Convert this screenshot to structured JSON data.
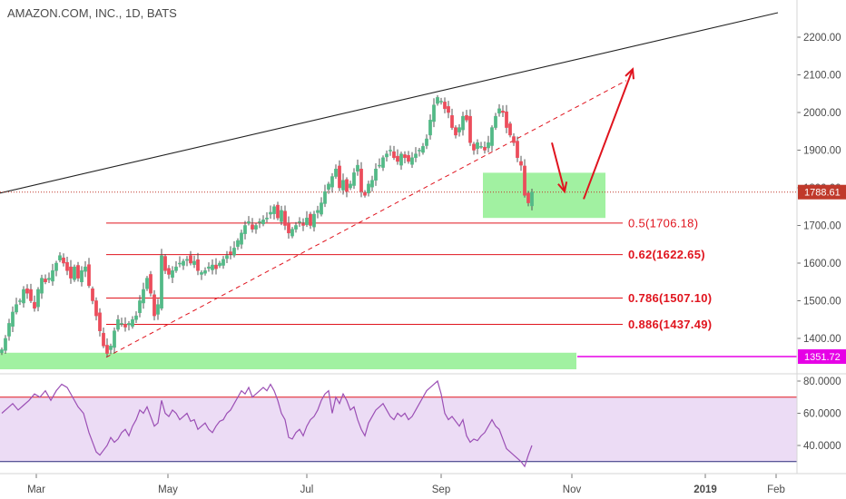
{
  "colors": {
    "up_candle": "#53b987",
    "down_candle": "#eb4d5c",
    "wick": "#555555",
    "resistance_line": "#222222",
    "support_dashed": "#e0141e",
    "fib_line": "#e0141e",
    "green_zone": "#90ee90",
    "current_price_line": "#c0392b",
    "support_price_line": "#e600e6",
    "rsi_line": "#9b4fb5",
    "rsi_band": "#ecdcf5",
    "rsi_upper": "#e0141e",
    "rsi_lower": "#2a2a7a",
    "arrow": "#e0141e"
  },
  "chart_data": [
    {
      "type": "candlestick",
      "title": "AMAZON.COM, INC., 1D, BATS",
      "ylim": [
        1320,
        2290
      ],
      "y_ticks": [
        "1400.00",
        "1500.00",
        "1600.00",
        "1700.00",
        "1800.00",
        "1900.00",
        "2000.00",
        "2100.00",
        "2200.00"
      ],
      "x_ticks": [
        {
          "label": "Mar",
          "bold": false
        },
        {
          "label": "May",
          "bold": false
        },
        {
          "label": "Jul",
          "bold": false
        },
        {
          "label": "Sep",
          "bold": false
        },
        {
          "label": "Nov",
          "bold": false
        },
        {
          "label": "2019",
          "bold": true
        },
        {
          "label": "Feb",
          "bold": false
        }
      ],
      "close_path": [
        [
          0,
          1370
        ],
        [
          4,
          1400
        ],
        [
          8,
          1440
        ],
        [
          12,
          1470
        ],
        [
          16,
          1490
        ],
        [
          20,
          1500
        ],
        [
          24,
          1530
        ],
        [
          28,
          1520
        ],
        [
          32,
          1500
        ],
        [
          36,
          1480
        ],
        [
          40,
          1530
        ],
        [
          44,
          1560
        ],
        [
          48,
          1550
        ],
        [
          52,
          1560
        ],
        [
          56,
          1580
        ],
        [
          60,
          1600
        ],
        [
          64,
          1620
        ],
        [
          68,
          1600
        ],
        [
          72,
          1580
        ],
        [
          76,
          1560
        ],
        [
          80,
          1590
        ],
        [
          84,
          1560
        ],
        [
          88,
          1580
        ],
        [
          92,
          1590
        ],
        [
          96,
          1540
        ],
        [
          100,
          1500
        ],
        [
          104,
          1460
        ],
        [
          108,
          1420
        ],
        [
          112,
          1380
        ],
        [
          116,
          1360
        ],
        [
          120,
          1380
        ],
        [
          124,
          1420
        ],
        [
          128,
          1450
        ],
        [
          132,
          1440
        ],
        [
          136,
          1430
        ],
        [
          140,
          1440
        ],
        [
          144,
          1450
        ],
        [
          148,
          1460
        ],
        [
          152,
          1500
        ],
        [
          156,
          1530
        ],
        [
          160,
          1560
        ],
        [
          164,
          1520
        ],
        [
          168,
          1460
        ],
        [
          172,
          1490
        ],
        [
          176,
          1620
        ],
        [
          180,
          1580
        ],
        [
          184,
          1570
        ],
        [
          188,
          1580
        ],
        [
          192,
          1590
        ],
        [
          196,
          1600
        ],
        [
          200,
          1605
        ],
        [
          204,
          1610
        ],
        [
          208,
          1600
        ],
        [
          212,
          1605
        ],
        [
          216,
          1580
        ],
        [
          220,
          1575
        ],
        [
          224,
          1580
        ],
        [
          228,
          1590
        ],
        [
          232,
          1595
        ],
        [
          236,
          1585
        ],
        [
          240,
          1600
        ],
        [
          244,
          1610
        ],
        [
          248,
          1620
        ],
        [
          252,
          1625
        ],
        [
          256,
          1640
        ],
        [
          260,
          1660
        ],
        [
          264,
          1680
        ],
        [
          268,
          1700
        ],
        [
          272,
          1710
        ],
        [
          276,
          1690
        ],
        [
          280,
          1700
        ],
        [
          284,
          1710
        ],
        [
          288,
          1715
        ],
        [
          292,
          1720
        ],
        [
          296,
          1735
        ],
        [
          300,
          1750
        ],
        [
          304,
          1720
        ],
        [
          308,
          1740
        ],
        [
          312,
          1700
        ],
        [
          316,
          1680
        ],
        [
          320,
          1690
        ],
        [
          324,
          1700
        ],
        [
          328,
          1710
        ],
        [
          332,
          1700
        ],
        [
          336,
          1720
        ],
        [
          340,
          1700
        ],
        [
          344,
          1730
        ],
        [
          348,
          1740
        ],
        [
          352,
          1760
        ],
        [
          356,
          1790
        ],
        [
          360,
          1810
        ],
        [
          364,
          1830
        ],
        [
          368,
          1850
        ],
        [
          372,
          1800
        ],
        [
          376,
          1820
        ],
        [
          380,
          1790
        ],
        [
          384,
          1810
        ],
        [
          388,
          1840
        ],
        [
          392,
          1860
        ],
        [
          396,
          1790
        ],
        [
          400,
          1780
        ],
        [
          404,
          1810
        ],
        [
          408,
          1820
        ],
        [
          412,
          1850
        ],
        [
          416,
          1860
        ],
        [
          420,
          1880
        ],
        [
          424,
          1890
        ],
        [
          428,
          1900
        ],
        [
          432,
          1880
        ],
        [
          436,
          1870
        ],
        [
          440,
          1890
        ],
        [
          444,
          1880
        ],
        [
          448,
          1870
        ],
        [
          452,
          1880
        ],
        [
          456,
          1890
        ],
        [
          460,
          1900
        ],
        [
          464,
          1910
        ],
        [
          468,
          1930
        ],
        [
          472,
          1980
        ],
        [
          476,
          2020
        ],
        [
          480,
          2040
        ],
        [
          484,
          2030
        ],
        [
          488,
          2010
        ],
        [
          492,
          2000
        ],
        [
          496,
          1960
        ],
        [
          500,
          1940
        ],
        [
          504,
          1960
        ],
        [
          508,
          1990
        ],
        [
          512,
          1980
        ],
        [
          516,
          1920
        ],
        [
          520,
          1900
        ],
        [
          524,
          1920
        ],
        [
          528,
          1910
        ],
        [
          532,
          1900
        ],
        [
          536,
          1920
        ],
        [
          540,
          1960
        ],
        [
          544,
          1990
        ],
        [
          548,
          2010
        ],
        [
          552,
          2000
        ],
        [
          556,
          1960
        ],
        [
          560,
          1940
        ],
        [
          564,
          1920
        ],
        [
          568,
          1880
        ],
        [
          572,
          1860
        ],
        [
          576,
          1780
        ],
        [
          580,
          1760
        ],
        [
          584,
          1788.61
        ]
      ],
      "fib_levels": [
        {
          "label": "0.5(1706.18)",
          "value": 1706.18,
          "bold": false
        },
        {
          "label": "0.62(1622.65)",
          "value": 1622.65,
          "bold": true
        },
        {
          "label": "0.786(1507.10)",
          "value": 1507.1,
          "bold": true
        },
        {
          "label": "0.886(1437.49)",
          "value": 1437.49,
          "bold": true
        }
      ],
      "current_price": {
        "label": "1788.61",
        "value": 1788.61
      },
      "support_price": {
        "label": "1351.72",
        "value": 1351.72
      },
      "resistance_line": {
        "from": 1786,
        "to": 2265
      },
      "dashed_support_line": {
        "from": 1350,
        "to": 2085
      }
    },
    {
      "type": "line",
      "title": "",
      "ylim": [
        22,
        88
      ],
      "y_ticks": [
        "40.0000",
        "60.0000",
        "80.0000"
      ],
      "upper_band": 70,
      "lower_band": 30,
      "rsi_path": [
        [
          0,
          60
        ],
        [
          6,
          63
        ],
        [
          12,
          66
        ],
        [
          18,
          62
        ],
        [
          24,
          65
        ],
        [
          30,
          68
        ],
        [
          36,
          72
        ],
        [
          42,
          70
        ],
        [
          48,
          74
        ],
        [
          54,
          68
        ],
        [
          60,
          74
        ],
        [
          66,
          78
        ],
        [
          72,
          76
        ],
        [
          78,
          70
        ],
        [
          84,
          64
        ],
        [
          90,
          60
        ],
        [
          96,
          48
        ],
        [
          100,
          42
        ],
        [
          104,
          36
        ],
        [
          108,
          34
        ],
        [
          112,
          37
        ],
        [
          116,
          40
        ],
        [
          120,
          45
        ],
        [
          124,
          42
        ],
        [
          128,
          44
        ],
        [
          132,
          48
        ],
        [
          136,
          50
        ],
        [
          140,
          46
        ],
        [
          144,
          52
        ],
        [
          148,
          56
        ],
        [
          152,
          62
        ],
        [
          156,
          60
        ],
        [
          160,
          64
        ],
        [
          164,
          58
        ],
        [
          168,
          52
        ],
        [
          172,
          54
        ],
        [
          176,
          68
        ],
        [
          180,
          60
        ],
        [
          184,
          58
        ],
        [
          188,
          62
        ],
        [
          192,
          60
        ],
        [
          196,
          56
        ],
        [
          200,
          58
        ],
        [
          204,
          60
        ],
        [
          208,
          55
        ],
        [
          212,
          56
        ],
        [
          216,
          50
        ],
        [
          220,
          52
        ],
        [
          224,
          54
        ],
        [
          228,
          50
        ],
        [
          232,
          48
        ],
        [
          236,
          52
        ],
        [
          240,
          55
        ],
        [
          244,
          56
        ],
        [
          248,
          60
        ],
        [
          252,
          62
        ],
        [
          256,
          66
        ],
        [
          260,
          70
        ],
        [
          264,
          74
        ],
        [
          268,
          72
        ],
        [
          272,
          76
        ],
        [
          276,
          70
        ],
        [
          280,
          72
        ],
        [
          284,
          74
        ],
        [
          288,
          76
        ],
        [
          292,
          74
        ],
        [
          296,
          78
        ],
        [
          300,
          74
        ],
        [
          304,
          68
        ],
        [
          308,
          60
        ],
        [
          312,
          56
        ],
        [
          316,
          45
        ],
        [
          320,
          44
        ],
        [
          324,
          48
        ],
        [
          328,
          50
        ],
        [
          332,
          46
        ],
        [
          336,
          52
        ],
        [
          340,
          56
        ],
        [
          344,
          58
        ],
        [
          348,
          62
        ],
        [
          352,
          68
        ],
        [
          356,
          72
        ],
        [
          360,
          74
        ],
        [
          364,
          60
        ],
        [
          368,
          70
        ],
        [
          372,
          66
        ],
        [
          376,
          72
        ],
        [
          380,
          68
        ],
        [
          384,
          62
        ],
        [
          388,
          64
        ],
        [
          392,
          56
        ],
        [
          396,
          50
        ],
        [
          400,
          46
        ],
        [
          404,
          54
        ],
        [
          408,
          58
        ],
        [
          412,
          62
        ],
        [
          416,
          64
        ],
        [
          420,
          66
        ],
        [
          424,
          62
        ],
        [
          428,
          58
        ],
        [
          432,
          56
        ],
        [
          436,
          60
        ],
        [
          440,
          58
        ],
        [
          444,
          60
        ],
        [
          448,
          56
        ],
        [
          452,
          58
        ],
        [
          456,
          62
        ],
        [
          460,
          66
        ],
        [
          464,
          70
        ],
        [
          468,
          74
        ],
        [
          472,
          76
        ],
        [
          476,
          78
        ],
        [
          480,
          80
        ],
        [
          484,
          72
        ],
        [
          488,
          60
        ],
        [
          492,
          56
        ],
        [
          496,
          58
        ],
        [
          500,
          55
        ],
        [
          504,
          52
        ],
        [
          508,
          56
        ],
        [
          512,
          46
        ],
        [
          516,
          42
        ],
        [
          520,
          44
        ],
        [
          524,
          43
        ],
        [
          528,
          46
        ],
        [
          532,
          48
        ],
        [
          536,
          52
        ],
        [
          540,
          56
        ],
        [
          544,
          52
        ],
        [
          548,
          50
        ],
        [
          552,
          44
        ],
        [
          556,
          38
        ],
        [
          560,
          36
        ],
        [
          564,
          34
        ],
        [
          568,
          32
        ],
        [
          572,
          30
        ],
        [
          576,
          27
        ],
        [
          580,
          34
        ],
        [
          584,
          40
        ]
      ]
    }
  ]
}
